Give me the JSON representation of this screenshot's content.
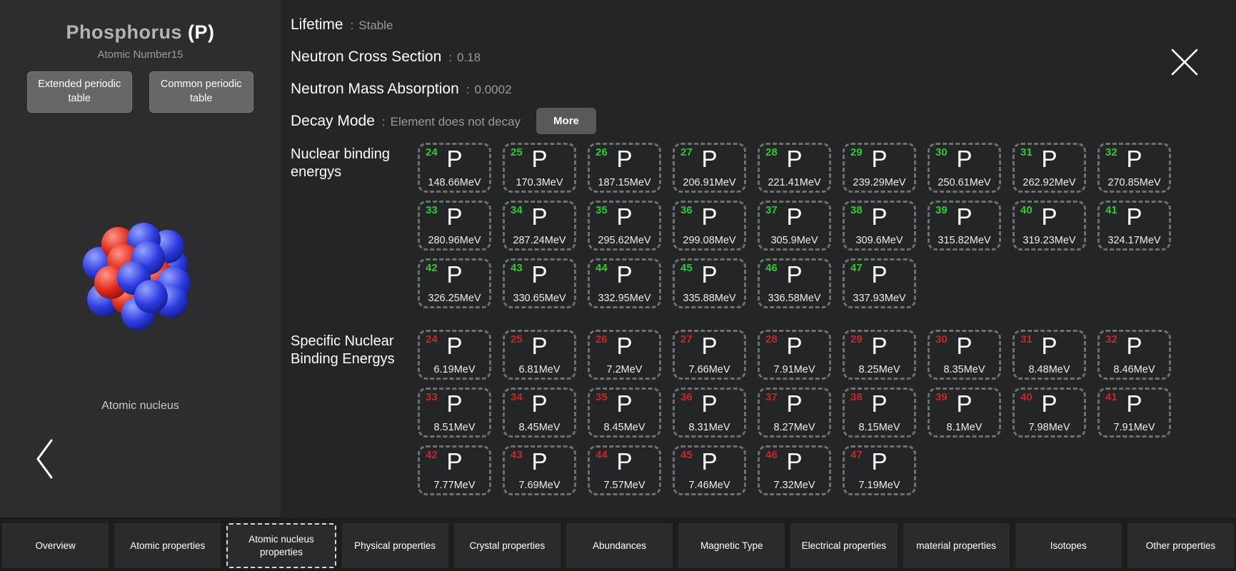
{
  "sidebar": {
    "title_name": "Phosphorus",
    "title_symbol": "(P)",
    "atomic_number_label": "Atomic Number",
    "atomic_number_value": "15",
    "extended_table_button": "Extended periodic table",
    "common_table_button": "Common periodic table",
    "nucleus_caption": "Atomic nucleus"
  },
  "details": {
    "separator": ":",
    "properties": [
      {
        "label": "Lifetime",
        "value": "Stable"
      },
      {
        "label": "Neutron Cross Section",
        "value": "0.18"
      },
      {
        "label": "Neutron Mass Absorption",
        "value": "0.0002"
      },
      {
        "label": "Decay Mode",
        "value": "Element does not decay",
        "more_button": "More"
      }
    ]
  },
  "isotope_sections": [
    {
      "title": "Nuclear binding energys",
      "number_color": "#2fca2f",
      "tiles": [
        {
          "mass": "24",
          "symbol": "P",
          "value": "148.66MeV"
        },
        {
          "mass": "25",
          "symbol": "P",
          "value": "170.3MeV"
        },
        {
          "mass": "26",
          "symbol": "P",
          "value": "187.15MeV"
        },
        {
          "mass": "27",
          "symbol": "P",
          "value": "206.91MeV"
        },
        {
          "mass": "28",
          "symbol": "P",
          "value": "221.41MeV"
        },
        {
          "mass": "29",
          "symbol": "P",
          "value": "239.29MeV"
        },
        {
          "mass": "30",
          "symbol": "P",
          "value": "250.61MeV"
        },
        {
          "mass": "31",
          "symbol": "P",
          "value": "262.92MeV"
        },
        {
          "mass": "32",
          "symbol": "P",
          "value": "270.85MeV"
        },
        {
          "mass": "33",
          "symbol": "P",
          "value": "280.96MeV"
        },
        {
          "mass": "34",
          "symbol": "P",
          "value": "287.24MeV"
        },
        {
          "mass": "35",
          "symbol": "P",
          "value": "295.62MeV"
        },
        {
          "mass": "36",
          "symbol": "P",
          "value": "299.08MeV"
        },
        {
          "mass": "37",
          "symbol": "P",
          "value": "305.9MeV"
        },
        {
          "mass": "38",
          "symbol": "P",
          "value": "309.6MeV"
        },
        {
          "mass": "39",
          "symbol": "P",
          "value": "315.82MeV"
        },
        {
          "mass": "40",
          "symbol": "P",
          "value": "319.23MeV"
        },
        {
          "mass": "41",
          "symbol": "P",
          "value": "324.17MeV"
        },
        {
          "mass": "42",
          "symbol": "P",
          "value": "326.25MeV"
        },
        {
          "mass": "43",
          "symbol": "P",
          "value": "330.65MeV"
        },
        {
          "mass": "44",
          "symbol": "P",
          "value": "332.95MeV"
        },
        {
          "mass": "45",
          "symbol": "P",
          "value": "335.88MeV"
        },
        {
          "mass": "46",
          "symbol": "P",
          "value": "336.58MeV"
        },
        {
          "mass": "47",
          "symbol": "P",
          "value": "337.93MeV"
        }
      ]
    },
    {
      "title": "Specific Nuclear Binding Energys",
      "number_color": "#c42828",
      "tiles": [
        {
          "mass": "24",
          "symbol": "P",
          "value": "6.19MeV"
        },
        {
          "mass": "25",
          "symbol": "P",
          "value": "6.81MeV"
        },
        {
          "mass": "26",
          "symbol": "P",
          "value": "7.2MeV"
        },
        {
          "mass": "27",
          "symbol": "P",
          "value": "7.66MeV"
        },
        {
          "mass": "28",
          "symbol": "P",
          "value": "7.91MeV"
        },
        {
          "mass": "29",
          "symbol": "P",
          "value": "8.25MeV"
        },
        {
          "mass": "30",
          "symbol": "P",
          "value": "8.35MeV"
        },
        {
          "mass": "31",
          "symbol": "P",
          "value": "8.48MeV"
        },
        {
          "mass": "32",
          "symbol": "P",
          "value": "8.46MeV"
        },
        {
          "mass": "33",
          "symbol": "P",
          "value": "8.51MeV"
        },
        {
          "mass": "34",
          "symbol": "P",
          "value": "8.45MeV"
        },
        {
          "mass": "35",
          "symbol": "P",
          "value": "8.45MeV"
        },
        {
          "mass": "36",
          "symbol": "P",
          "value": "8.31MeV"
        },
        {
          "mass": "37",
          "symbol": "P",
          "value": "8.27MeV"
        },
        {
          "mass": "38",
          "symbol": "P",
          "value": "8.15MeV"
        },
        {
          "mass": "39",
          "symbol": "P",
          "value": "8.1MeV"
        },
        {
          "mass": "40",
          "symbol": "P",
          "value": "7.98MeV"
        },
        {
          "mass": "41",
          "symbol": "P",
          "value": "7.91MeV"
        },
        {
          "mass": "42",
          "symbol": "P",
          "value": "7.77MeV"
        },
        {
          "mass": "43",
          "symbol": "P",
          "value": "7.69MeV"
        },
        {
          "mass": "44",
          "symbol": "P",
          "value": "7.57MeV"
        },
        {
          "mass": "45",
          "symbol": "P",
          "value": "7.46MeV"
        },
        {
          "mass": "46",
          "symbol": "P",
          "value": "7.32MeV"
        },
        {
          "mass": "47",
          "symbol": "P",
          "value": "7.19MeV"
        }
      ]
    }
  ],
  "tab_bar": {
    "selected": "Atomic nucleus properties",
    "tabs": [
      {
        "label": "Overview"
      },
      {
        "label": "Atomic properties"
      },
      {
        "label": "Atomic nucleus properties"
      },
      {
        "label": "Physical properties"
      },
      {
        "label": "Crystal properties"
      },
      {
        "label": "Abundances"
      },
      {
        "label": "Magnetic Type"
      },
      {
        "label": "Electrical properties"
      },
      {
        "label": "material properties"
      },
      {
        "label": "Isotopes"
      },
      {
        "label": "Other properties"
      }
    ]
  }
}
